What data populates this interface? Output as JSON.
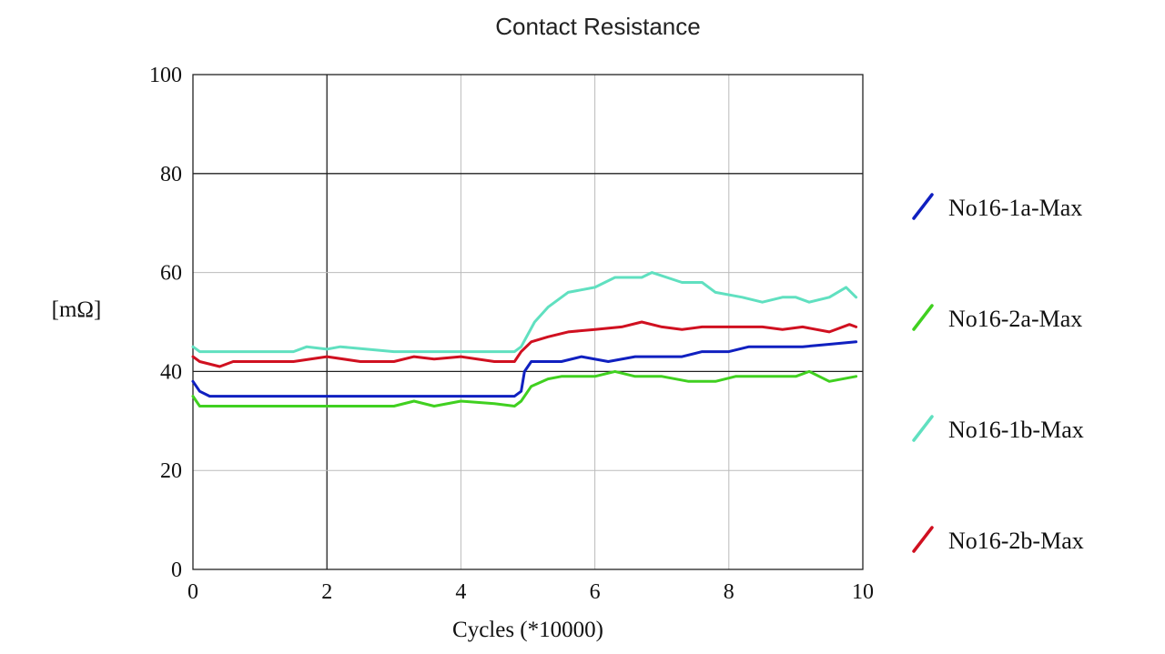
{
  "chart_data": {
    "type": "line",
    "title": "Contact Resistance",
    "xlabel": "Cycles (*10000)",
    "ylabel": "[mΩ]",
    "xlim": [
      0,
      10
    ],
    "ylim": [
      0,
      100
    ],
    "x_ticks": [
      "0",
      "2",
      "4",
      "6",
      "8",
      "10"
    ],
    "y_ticks": [
      "0",
      "20",
      "40",
      "60",
      "80",
      "100"
    ],
    "grid": true,
    "legend_position": "right",
    "series": [
      {
        "name": "No16-1a-Max",
        "color": "#1020c0",
        "points": [
          [
            0,
            38
          ],
          [
            0.1,
            36
          ],
          [
            0.25,
            35
          ],
          [
            1,
            35
          ],
          [
            2,
            35
          ],
          [
            3,
            35
          ],
          [
            4,
            35
          ],
          [
            4.8,
            35
          ],
          [
            4.9,
            36
          ],
          [
            4.95,
            40
          ],
          [
            5.05,
            42
          ],
          [
            5.5,
            42
          ],
          [
            5.8,
            43
          ],
          [
            6.2,
            42
          ],
          [
            6.6,
            43
          ],
          [
            7,
            43
          ],
          [
            7.3,
            43
          ],
          [
            7.6,
            44
          ],
          [
            8,
            44
          ],
          [
            8.3,
            45
          ],
          [
            8.7,
            45
          ],
          [
            9.1,
            45
          ],
          [
            9.5,
            45.5
          ],
          [
            9.9,
            46
          ]
        ]
      },
      {
        "name": "No16-2a-Max",
        "color": "#40d020",
        "points": [
          [
            0,
            35
          ],
          [
            0.1,
            33
          ],
          [
            1,
            33
          ],
          [
            2,
            33
          ],
          [
            3,
            33
          ],
          [
            3.3,
            34
          ],
          [
            3.6,
            33
          ],
          [
            4,
            34
          ],
          [
            4.5,
            33.5
          ],
          [
            4.8,
            33
          ],
          [
            4.9,
            34
          ],
          [
            5.05,
            37
          ],
          [
            5.3,
            38.5
          ],
          [
            5.5,
            39
          ],
          [
            6,
            39
          ],
          [
            6.3,
            40
          ],
          [
            6.6,
            39
          ],
          [
            7,
            39
          ],
          [
            7.4,
            38
          ],
          [
            7.8,
            38
          ],
          [
            8.1,
            39
          ],
          [
            8.5,
            39
          ],
          [
            9,
            39
          ],
          [
            9.2,
            40
          ],
          [
            9.5,
            38
          ],
          [
            9.9,
            39
          ]
        ]
      },
      {
        "name": "No16-1b-Max",
        "color": "#60e0c0",
        "points": [
          [
            0,
            45
          ],
          [
            0.1,
            44
          ],
          [
            1,
            44
          ],
          [
            1.5,
            44
          ],
          [
            1.7,
            45
          ],
          [
            2,
            44.5
          ],
          [
            2.2,
            45
          ],
          [
            3,
            44
          ],
          [
            3.5,
            44
          ],
          [
            4,
            44
          ],
          [
            4.8,
            44
          ],
          [
            4.9,
            45
          ],
          [
            5.1,
            50
          ],
          [
            5.3,
            53
          ],
          [
            5.6,
            56
          ],
          [
            6,
            57
          ],
          [
            6.3,
            59
          ],
          [
            6.7,
            59
          ],
          [
            6.85,
            60
          ],
          [
            7.3,
            58
          ],
          [
            7.6,
            58
          ],
          [
            7.8,
            56
          ],
          [
            8.2,
            55
          ],
          [
            8.5,
            54
          ],
          [
            8.8,
            55
          ],
          [
            9,
            55
          ],
          [
            9.2,
            54
          ],
          [
            9.5,
            55
          ],
          [
            9.75,
            57
          ],
          [
            9.9,
            55
          ]
        ]
      },
      {
        "name": "No16-2b-Max",
        "color": "#d01020",
        "points": [
          [
            0,
            43
          ],
          [
            0.1,
            42
          ],
          [
            0.4,
            41
          ],
          [
            0.6,
            42
          ],
          [
            1,
            42
          ],
          [
            1.5,
            42
          ],
          [
            2,
            43
          ],
          [
            2.5,
            42
          ],
          [
            3,
            42
          ],
          [
            3.3,
            43
          ],
          [
            3.6,
            42.5
          ],
          [
            4,
            43
          ],
          [
            4.5,
            42
          ],
          [
            4.8,
            42
          ],
          [
            4.9,
            44
          ],
          [
            5.05,
            46
          ],
          [
            5.3,
            47
          ],
          [
            5.6,
            48
          ],
          [
            6,
            48.5
          ],
          [
            6.4,
            49
          ],
          [
            6.7,
            50
          ],
          [
            7,
            49
          ],
          [
            7.3,
            48.5
          ],
          [
            7.6,
            49
          ],
          [
            8,
            49
          ],
          [
            8.5,
            49
          ],
          [
            8.8,
            48.5
          ],
          [
            9.1,
            49
          ],
          [
            9.5,
            48
          ],
          [
            9.8,
            49.5
          ],
          [
            9.9,
            49
          ]
        ]
      }
    ]
  }
}
